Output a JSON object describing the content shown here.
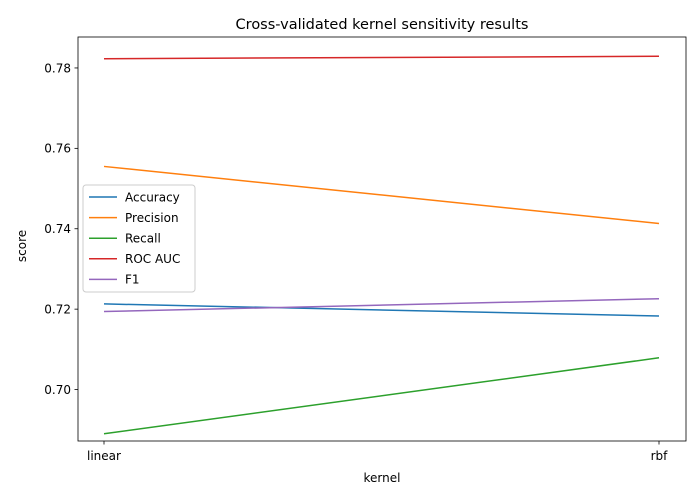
{
  "chart_data": {
    "type": "line",
    "title": "Cross-validated kernel sensitivity results",
    "xlabel": "kernel",
    "ylabel": "score",
    "categories": [
      "linear",
      "rbf"
    ],
    "ylim": [
      0.6872,
      0.7877
    ],
    "yticks": [
      0.7,
      0.72,
      0.74,
      0.76,
      0.78
    ],
    "ytick_labels": [
      "0.70",
      "0.72",
      "0.74",
      "0.76",
      "0.78"
    ],
    "grid": false,
    "legend_position": "center-left",
    "series": [
      {
        "name": "Accuracy",
        "color": "#1f77b4",
        "values": [
          0.7213,
          0.7183
        ]
      },
      {
        "name": "Precision",
        "color": "#ff7f0e",
        "values": [
          0.7555,
          0.7413
        ]
      },
      {
        "name": "Recall",
        "color": "#2ca02c",
        "values": [
          0.689,
          0.7079
        ]
      },
      {
        "name": "ROC AUC",
        "color": "#d62728",
        "values": [
          0.7823,
          0.7829
        ]
      },
      {
        "name": "F1",
        "color": "#9467bd",
        "values": [
          0.7194,
          0.7226
        ]
      }
    ]
  }
}
